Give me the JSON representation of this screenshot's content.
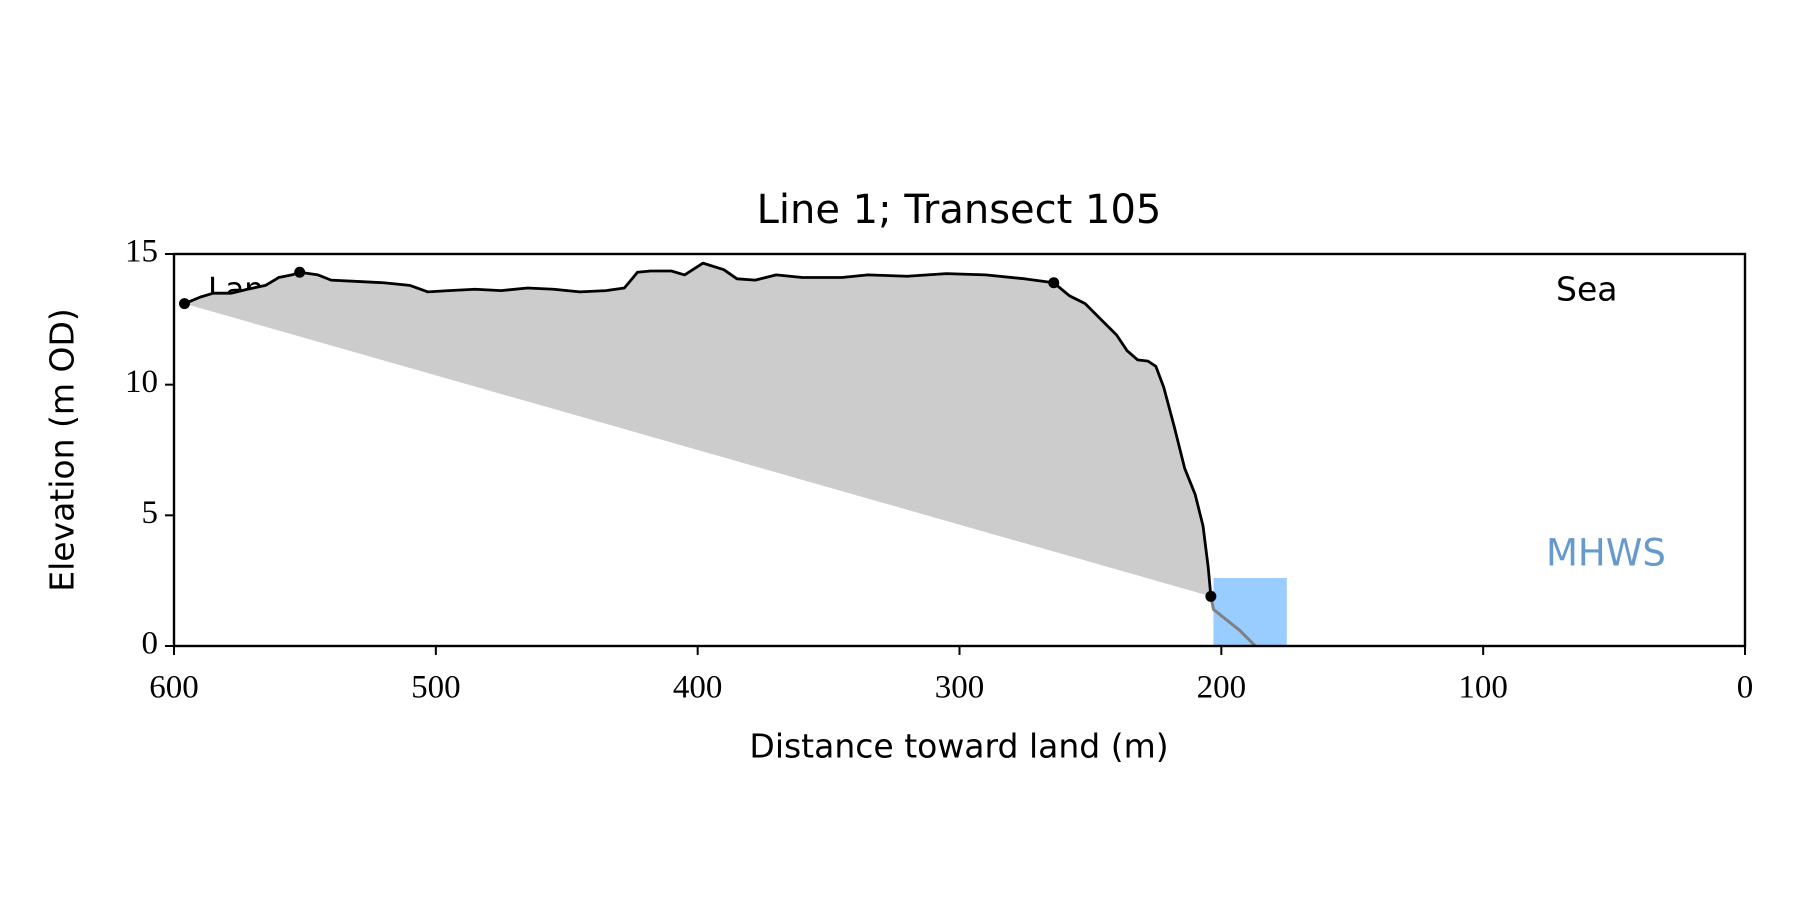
{
  "chart_data": {
    "type": "line",
    "title": "Line 1; Transect 105",
    "x_label": "Distance toward land (m)",
    "y_label": "Elevation (m OD)",
    "xlim": [
      600,
      0
    ],
    "ylim": [
      0,
      15
    ],
    "xticks": [
      600,
      500,
      400,
      300,
      200,
      100,
      0
    ],
    "yticks": [
      0,
      5,
      10,
      15
    ],
    "annotations": {
      "land": "Land",
      "sea": "Sea",
      "mhws": "MHWS"
    },
    "profile": {
      "color": "#000000",
      "x": [
        596,
        590,
        585,
        578,
        572,
        565,
        560,
        555,
        552,
        545,
        540,
        530,
        520,
        510,
        503,
        495,
        485,
        475,
        465,
        455,
        445,
        435,
        428,
        423,
        418,
        410,
        405,
        398,
        390,
        385,
        378,
        370,
        360,
        345,
        335,
        320,
        305,
        290,
        275,
        264,
        258,
        252,
        245,
        240,
        236,
        232,
        228,
        225,
        222,
        218,
        214,
        210,
        207,
        205,
        204
      ],
      "values": [
        13.1,
        13.35,
        13.5,
        13.5,
        13.65,
        13.8,
        14.1,
        14.2,
        14.3,
        14.2,
        14.0,
        13.95,
        13.9,
        13.8,
        13.55,
        13.6,
        13.65,
        13.6,
        13.7,
        13.65,
        13.55,
        13.6,
        13.7,
        14.3,
        14.35,
        14.35,
        14.2,
        14.65,
        14.4,
        14.05,
        14.0,
        14.2,
        14.1,
        14.1,
        14.2,
        14.15,
        14.25,
        14.2,
        14.05,
        13.9,
        13.4,
        13.1,
        12.4,
        11.9,
        11.3,
        10.95,
        10.9,
        10.7,
        9.9,
        8.4,
        6.8,
        5.8,
        4.6,
        3.0,
        1.9
      ]
    },
    "lower_profile": {
      "color": "#808080",
      "x": [
        204,
        203,
        198,
        193,
        190,
        187
      ],
      "values": [
        1.9,
        1.4,
        1.0,
        0.6,
        0.3,
        0.0
      ]
    },
    "markers": {
      "color": "#000000",
      "x": [
        596,
        552,
        264,
        204
      ],
      "values": [
        13.1,
        14.3,
        13.9,
        1.9
      ]
    },
    "fill_color": "#cccccc",
    "mhws_band": {
      "color": "#99ccff",
      "x": [
        203,
        175
      ],
      "level": 2.6
    }
  }
}
